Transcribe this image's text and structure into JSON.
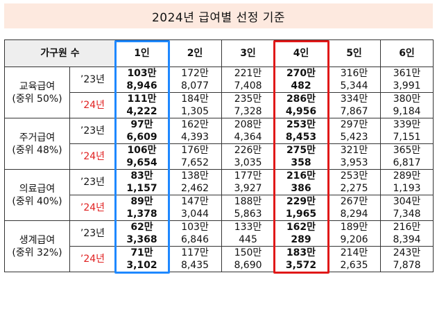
{
  "title": "2024년 급여별 선정 기준",
  "header": {
    "label": "가구원 수",
    "columns": [
      "1인",
      "2인",
      "3인",
      "4인",
      "5인",
      "6인"
    ]
  },
  "groups": [
    {
      "name": "교육급여",
      "sub": "(중위 50%)",
      "rows": [
        {
          "year": "’23년",
          "red": false,
          "amounts": [
            "103만",
            "172만",
            "221만",
            "270만",
            "316만",
            "361만"
          ],
          "values": [
            "8,946",
            "8,077",
            "7,408",
            "482",
            "5,344",
            "3,991"
          ]
        },
        {
          "year": "’24년",
          "red": true,
          "amounts": [
            "111만",
            "184만",
            "235만",
            "286만",
            "334만",
            "380만"
          ],
          "values": [
            "4,222",
            "1,305",
            "7,328",
            "4,956",
            "7,867",
            "9,184"
          ]
        }
      ]
    },
    {
      "name": "주거급여",
      "sub": "(중위 48%)",
      "rows": [
        {
          "year": "’23년",
          "red": false,
          "amounts": [
            "97만",
            "162만",
            "208만",
            "253만",
            "297만",
            "339만"
          ],
          "values": [
            "6,609",
            "4,393",
            "4,364",
            "8,453",
            "5,423",
            "7,151"
          ]
        },
        {
          "year": "’24년",
          "red": true,
          "amounts": [
            "106만",
            "176만",
            "226만",
            "275만",
            "321만",
            "365만"
          ],
          "values": [
            "9,654",
            "7,652",
            "3,035",
            "358",
            "3,953",
            "6,817"
          ]
        }
      ]
    },
    {
      "name": "의료급여",
      "sub": "(중위 40%)",
      "rows": [
        {
          "year": "’23년",
          "red": false,
          "amounts": [
            "83만",
            "138만",
            "177만",
            "216만",
            "253만",
            "289만"
          ],
          "values": [
            "1,157",
            "2,462",
            "3,927",
            "386",
            "2,275",
            "1,193"
          ]
        },
        {
          "year": "’24년",
          "red": true,
          "amounts": [
            "89만",
            "147만",
            "188만",
            "229만",
            "267만",
            "304만"
          ],
          "values": [
            "1,378",
            "3,044",
            "5,863",
            "1,965",
            "8,294",
            "7,348"
          ]
        }
      ]
    },
    {
      "name": "생계급여",
      "sub": "(중위 32%)",
      "rows": [
        {
          "year": "’23년",
          "red": false,
          "amounts": [
            "62만",
            "103만",
            "133만",
            "162만",
            "189만",
            "216만"
          ],
          "values": [
            "3,368",
            "6,846",
            "445",
            "289",
            "9,206",
            "8,394"
          ]
        },
        {
          "year": "’24년",
          "red": true,
          "amounts": [
            "71만",
            "117만",
            "150만",
            "183만",
            "214만",
            "243만"
          ],
          "values": [
            "3,102",
            "8,435",
            "8,690",
            "3,572",
            "2,635",
            "7,878"
          ]
        }
      ]
    }
  ],
  "highlights": {
    "blue_column": "1인",
    "red_column": "4인",
    "blue_color": "#1e88ff",
    "red_color": "#e01818"
  }
}
